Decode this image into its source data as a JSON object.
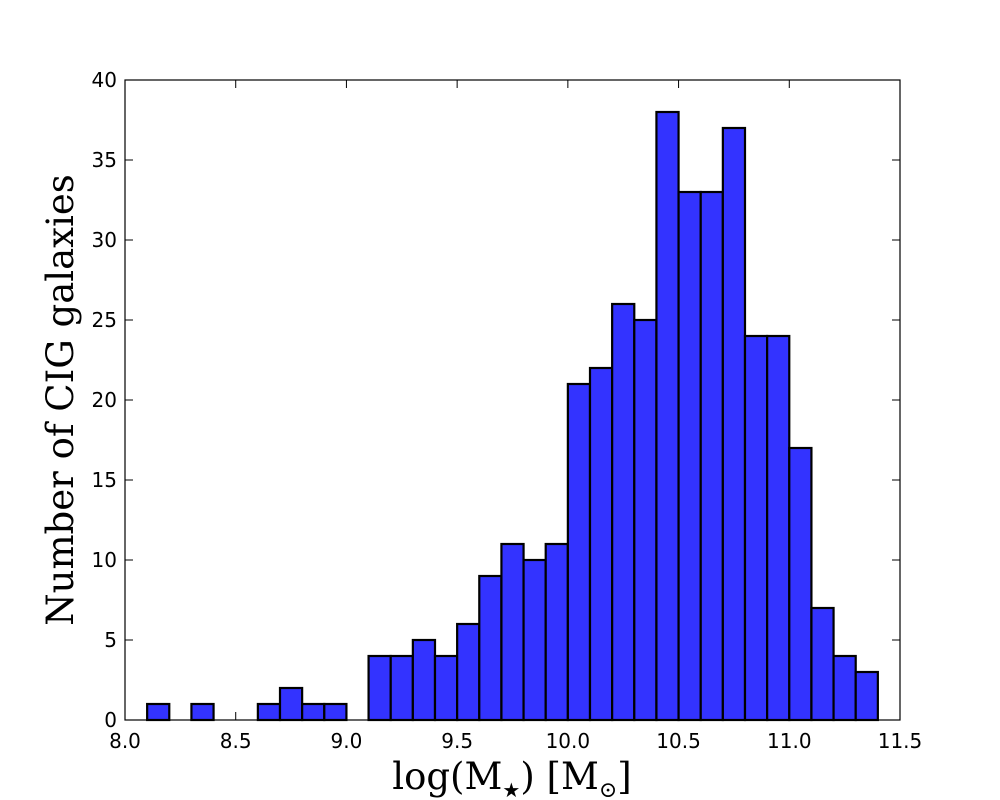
{
  "chart_data": {
    "type": "bar",
    "subtype": "histogram",
    "xlabel": "log(M",
    "xlabel_sub": "★",
    "xlabel_unit": ") [M",
    "xlabel_unit_sub": "⊙",
    "xlabel_close": "]",
    "ylabel": "Number of CIG galaxies",
    "xlim": [
      8.0,
      11.5
    ],
    "ylim": [
      0,
      40
    ],
    "xticks": [
      "8.0",
      "8.5",
      "9.0",
      "9.5",
      "10.0",
      "10.5",
      "11.0",
      "11.5"
    ],
    "yticks": [
      "0",
      "5",
      "10",
      "15",
      "20",
      "25",
      "30",
      "35",
      "40"
    ],
    "bin_edges": [
      8.0,
      8.1,
      8.2,
      8.3,
      8.4,
      8.5,
      8.6,
      8.7,
      8.8,
      8.9,
      9.0,
      9.1,
      9.2,
      9.3,
      9.4,
      9.5,
      9.6,
      9.7,
      9.8,
      9.9,
      10.0,
      10.1,
      10.2,
      10.3,
      10.4,
      10.5,
      10.6,
      10.7,
      10.8,
      10.9,
      11.0,
      11.1,
      11.2,
      11.3,
      11.4
    ],
    "values": [
      0,
      1,
      0,
      1,
      0,
      0,
      1,
      2,
      1,
      1,
      0,
      4,
      4,
      5,
      4,
      6,
      9,
      11,
      10,
      11,
      21,
      22,
      26,
      25,
      38,
      33,
      33,
      37,
      24,
      24,
      17,
      7,
      4,
      3
    ],
    "bar_color": "#3333ff",
    "edge_color": "#000000",
    "grid": false,
    "legend": "none"
  }
}
